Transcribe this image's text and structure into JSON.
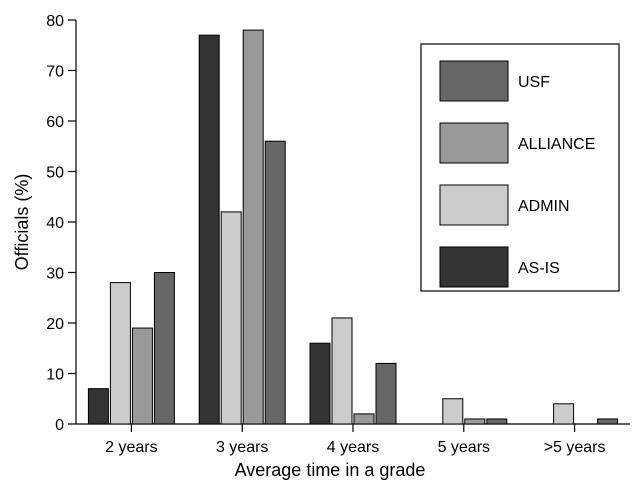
{
  "chart_data": {
    "type": "bar",
    "title": "",
    "xlabel": "Average time in a grade",
    "ylabel": "Officials (%)",
    "ylim": [
      0,
      80
    ],
    "yticks": [
      0,
      10,
      20,
      30,
      40,
      50,
      60,
      70,
      80
    ],
    "grid": false,
    "legend_position": "top-right",
    "categories": [
      "2 years",
      "3 years",
      "4 years",
      "5 years",
      ">5 years"
    ],
    "series": [
      {
        "name": "AS-IS",
        "color": "#333333",
        "values": [
          7,
          77,
          16,
          0,
          0
        ]
      },
      {
        "name": "ADMIN",
        "color": "#cccccc",
        "values": [
          28,
          42,
          21,
          5,
          4
        ]
      },
      {
        "name": "ALLIANCE",
        "color": "#999999",
        "values": [
          19,
          78,
          2,
          1,
          0
        ]
      },
      {
        "name": "USF",
        "color": "#666666",
        "values": [
          30,
          56,
          12,
          1,
          1
        ]
      }
    ],
    "legend_order": [
      "USF",
      "ALLIANCE",
      "ADMIN",
      "AS-IS"
    ]
  }
}
